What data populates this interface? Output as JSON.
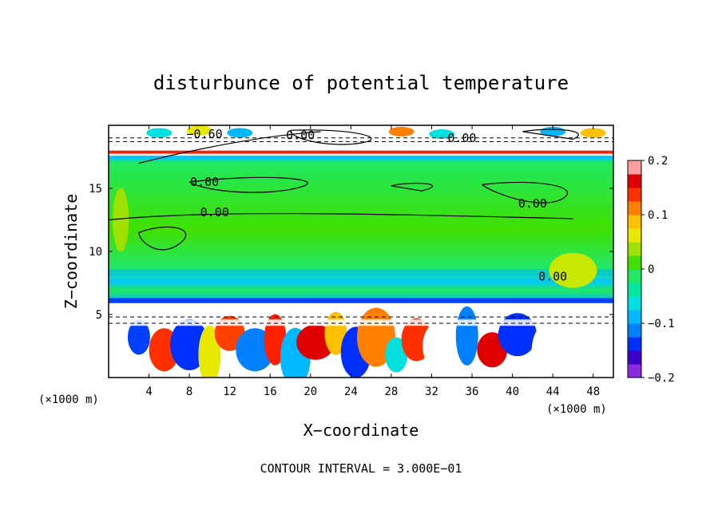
{
  "chart_data": {
    "type": "heatmap",
    "title": "disturbunce of potential temperature",
    "xlabel": "X−coordinate",
    "ylabel": "Z−coordinate",
    "x_unit": "(×1000 m)",
    "y_unit": "(×1000 m)",
    "xlim": [
      0,
      50
    ],
    "ylim": [
      0,
      20
    ],
    "x_ticks": [
      4,
      8,
      12,
      16,
      20,
      24,
      28,
      32,
      36,
      40,
      44,
      48
    ],
    "x_tick_labels": [
      "4",
      "8",
      "12",
      "16",
      "20",
      "24",
      "28",
      "32",
      "36",
      "40",
      "44",
      "48"
    ],
    "y_ticks": [
      5,
      10,
      15
    ],
    "y_tick_labels": [
      "5",
      "10",
      "15"
    ],
    "colorbar": {
      "min": -0.2,
      "max": 0.2,
      "ticks": [
        0.2,
        0.1,
        0,
        -0.1,
        -0.2
      ],
      "tick_labels": [
        "0.2",
        "0.1",
        "0",
        "−0.1",
        "−0.2"
      ],
      "colors": [
        "#8a2be2",
        "#3a00c8",
        "#0030ff",
        "#0080ff",
        "#00b8ff",
        "#00e0e0",
        "#00e8a0",
        "#20e860",
        "#40e000",
        "#a0e000",
        "#e8e800",
        "#ffc000",
        "#ff8000",
        "#ff3000",
        "#e00000",
        "#ffa0a0"
      ]
    },
    "contour_labels": [
      {
        "text": "0.00",
        "x": 19,
        "z": 19.2
      },
      {
        "text": "0.00",
        "x": 35,
        "z": 19.0
      },
      {
        "text": "−0.60",
        "x": 9.5,
        "z": 19.3
      },
      {
        "text": "0.00",
        "x": 9.5,
        "z": 15.5
      },
      {
        "text": "0.00",
        "x": 10.5,
        "z": 13.1
      },
      {
        "text": "0.00",
        "x": 42,
        "z": 13.8
      },
      {
        "text": "0.00",
        "x": 44,
        "z": 8
      }
    ],
    "field": {
      "lower_layer_z": [
        0,
        6
      ],
      "main_band_z": [
        6,
        17.5
      ],
      "upper_layer_z": [
        17.5,
        20
      ],
      "main_band_value": 0.0,
      "description": "near-zero (green) main band, alternating positive/negative perturbations below 6 km and above 17.5 km"
    }
  },
  "footer": {
    "contour_interval": "CONTOUR INTERVAL = 3.000E−01"
  }
}
